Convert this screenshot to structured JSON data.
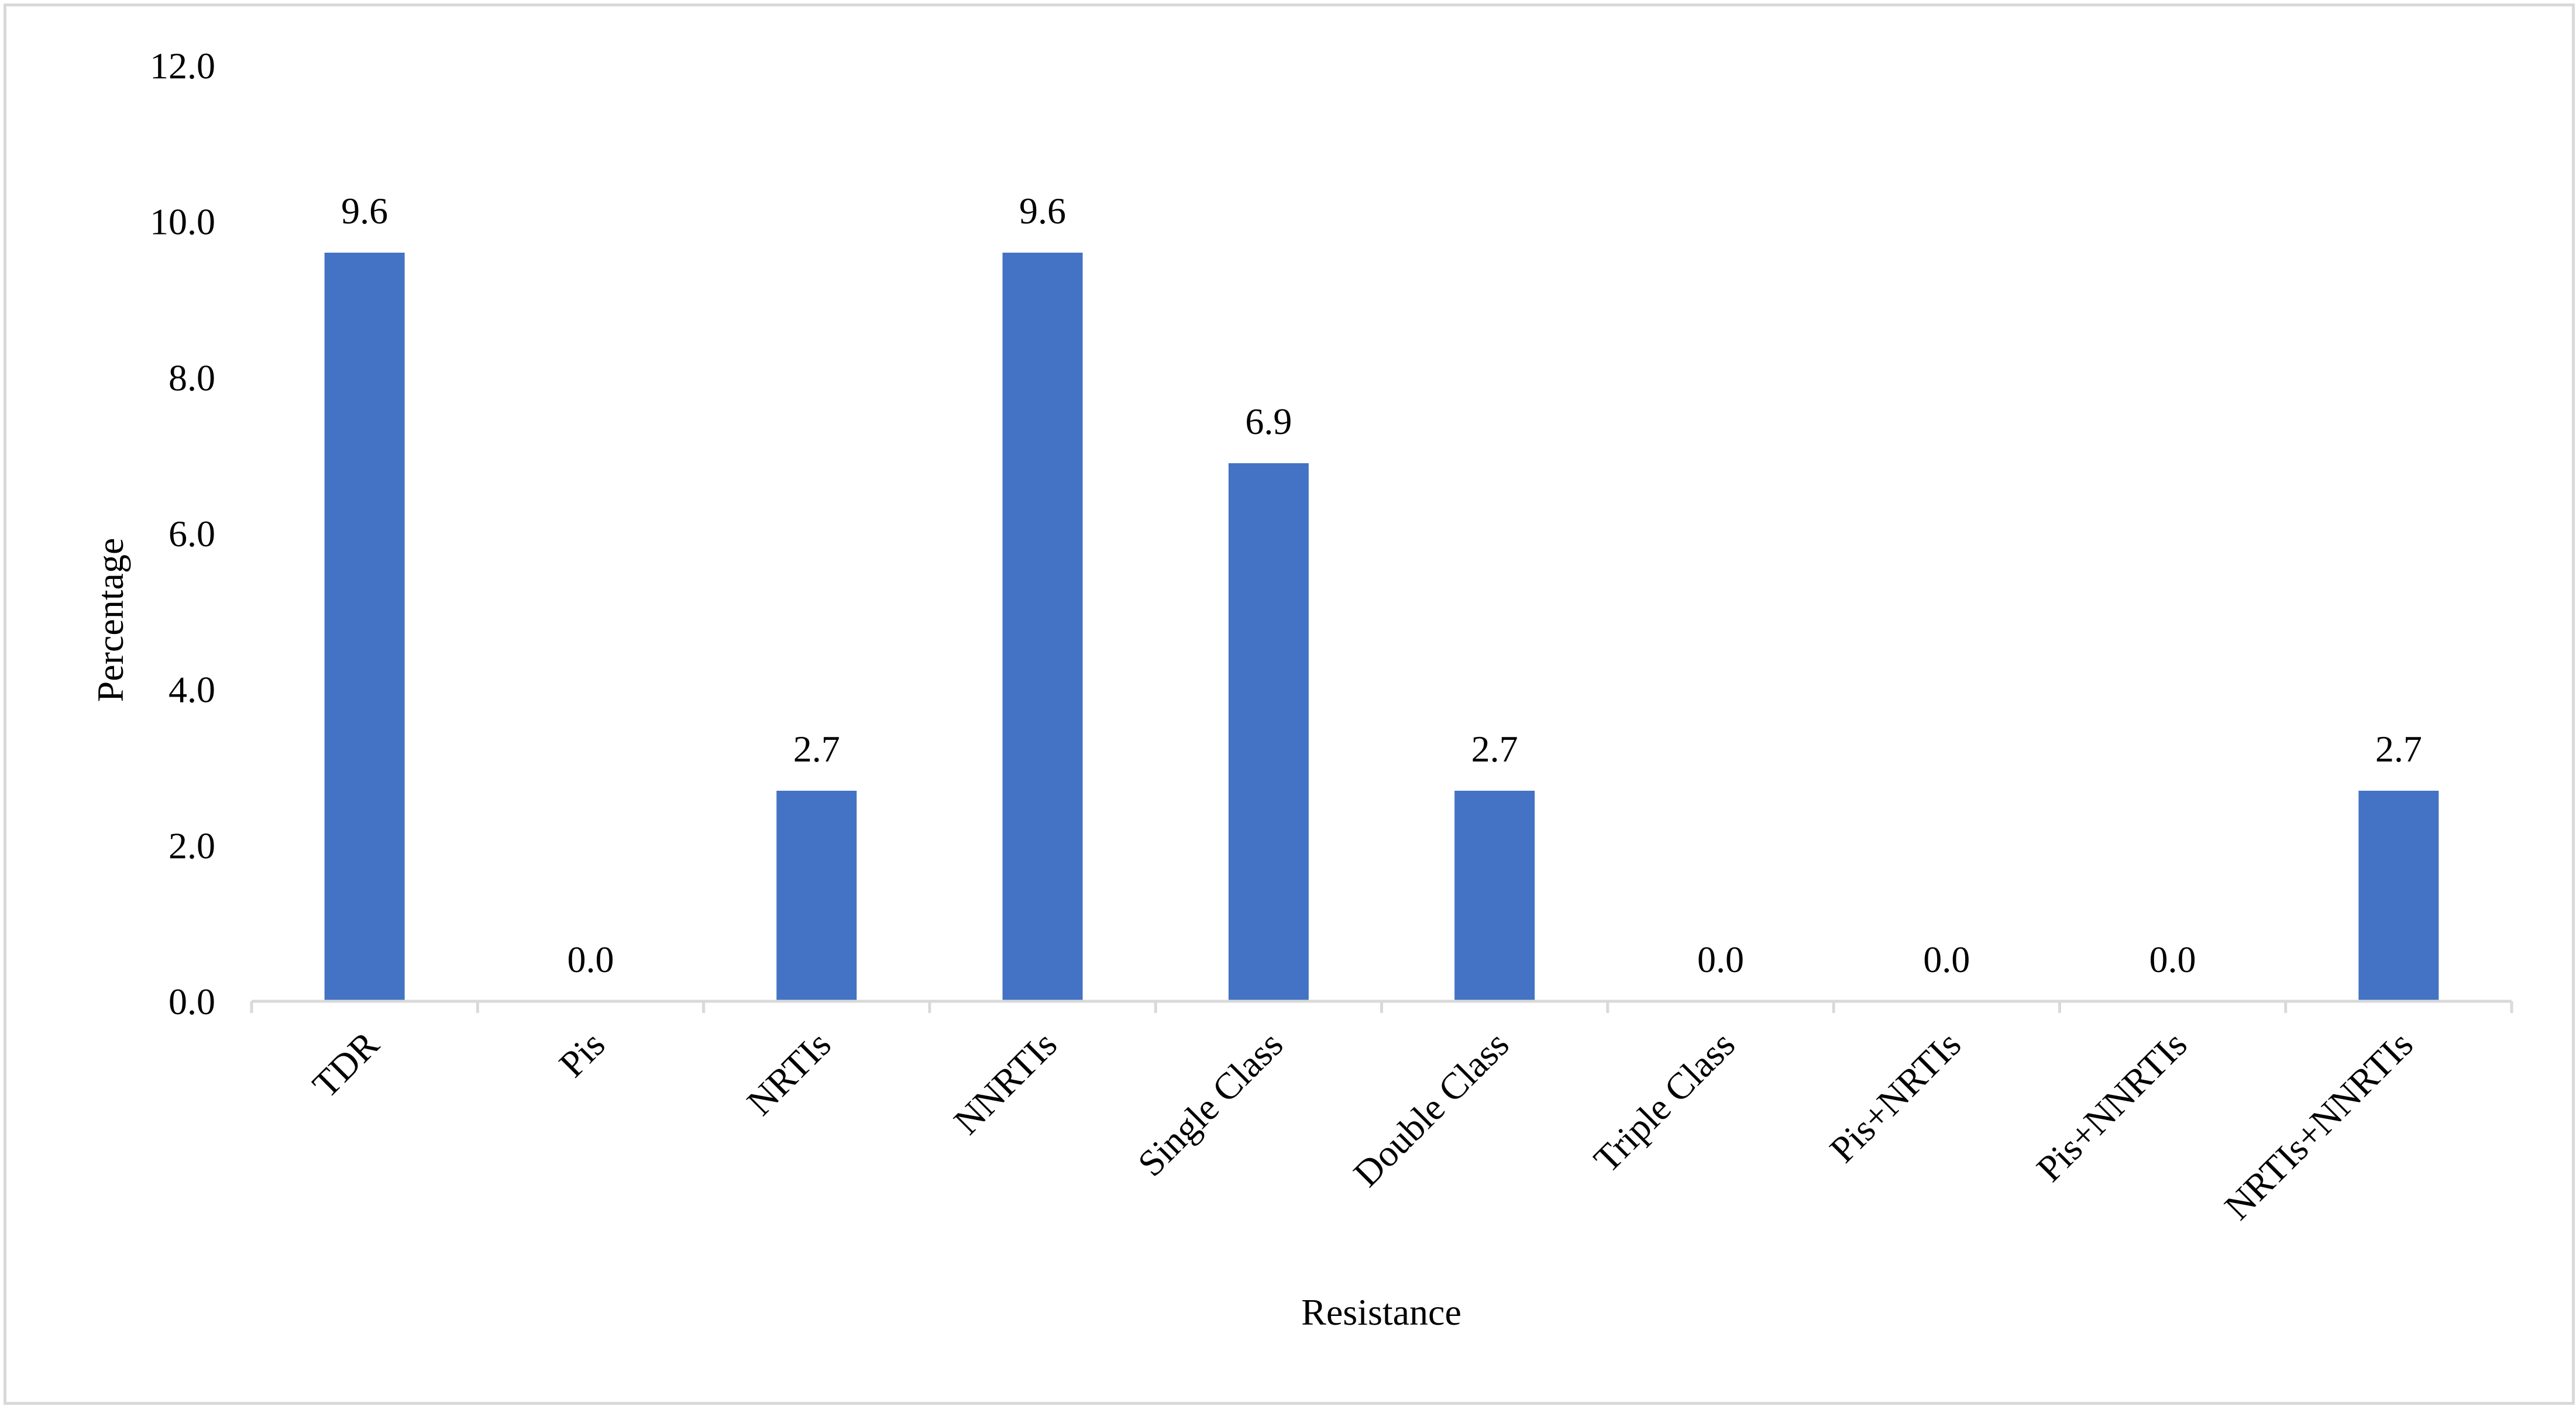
{
  "chart_data": {
    "type": "bar",
    "title": "",
    "xlabel": "Resistance",
    "ylabel": "Percentage",
    "categories": [
      "TDR",
      "Pis",
      "NRTIs",
      "NNRTIs",
      "Single Class",
      "Double Class",
      "Triple Class",
      "Pis+NRTIs",
      "Pis+NNRTIs",
      "NRTIs+NNRTIs"
    ],
    "values": [
      9.6,
      0.0,
      2.7,
      9.6,
      6.9,
      2.7,
      0.0,
      0.0,
      0.0,
      2.7
    ],
    "value_labels": [
      "9.6",
      "0.0",
      "2.7",
      "9.6",
      "6.9",
      "2.7",
      "0.0",
      "0.0",
      "0.0",
      "2.7"
    ],
    "ylim": [
      0,
      12
    ],
    "yticks": [
      "0.0",
      "2.0",
      "4.0",
      "6.0",
      "8.0",
      "10.0",
      "12.0"
    ],
    "ytick_values": [
      0,
      2,
      4,
      6,
      8,
      10,
      12
    ],
    "grid": false,
    "legend": "none",
    "colors": {
      "bar": "#4472c4",
      "axis": "#d9d9d9",
      "frame": "#d9d9d9",
      "text": "#000000"
    }
  }
}
